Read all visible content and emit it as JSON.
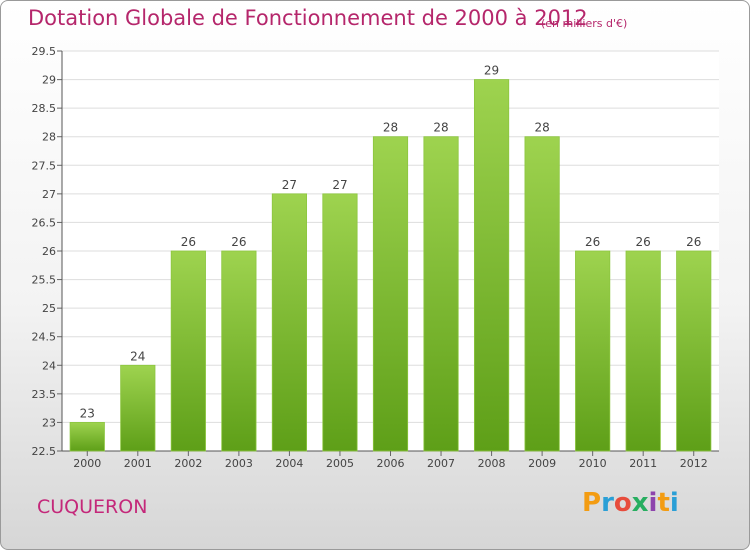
{
  "title": "Dotation Globale de Fonctionnement de 2000 à 2012",
  "subtitle": "(en milliers d'€)",
  "place": "CUQUERON",
  "brand": {
    "letters": [
      "P",
      "r",
      "o",
      "x",
      "i",
      "t",
      "i"
    ],
    "colors": [
      "#f39c12",
      "#2a9fd6",
      "#e74c3c",
      "#27ae60",
      "#8e44ad",
      "#f39c12",
      "#2a9fd6"
    ]
  },
  "colors": {
    "bar_top": "#9ed34f",
    "bar_bottom": "#5e9f18",
    "title": "#b5266b",
    "grid": "#dddddd"
  },
  "chart_data": {
    "type": "bar",
    "categories": [
      "2000",
      "2001",
      "2002",
      "2003",
      "2004",
      "2005",
      "2006",
      "2007",
      "2008",
      "2009",
      "2010",
      "2011",
      "2012"
    ],
    "values": [
      23,
      24,
      26,
      26,
      27,
      27,
      28,
      28,
      29,
      28,
      26,
      26,
      26
    ],
    "value_labels": [
      "23",
      "24",
      "26",
      "26",
      "27",
      "27",
      "28",
      "28",
      "29",
      "28",
      "26",
      "26",
      "26"
    ],
    "ylim": [
      22.5,
      29.5
    ],
    "yticks": [
      22.5,
      23,
      23.5,
      24,
      24.5,
      25,
      25.5,
      26,
      26.5,
      27,
      27.5,
      28,
      28.5,
      29,
      29.5
    ],
    "ytick_labels": [
      "22.5",
      "23",
      "23.5",
      "24",
      "24.5",
      "25",
      "25.5",
      "26",
      "26.5",
      "27",
      "27.5",
      "28",
      "28.5",
      "29",
      "29.5"
    ],
    "xlabel": "",
    "ylabel": "",
    "grid": true
  }
}
